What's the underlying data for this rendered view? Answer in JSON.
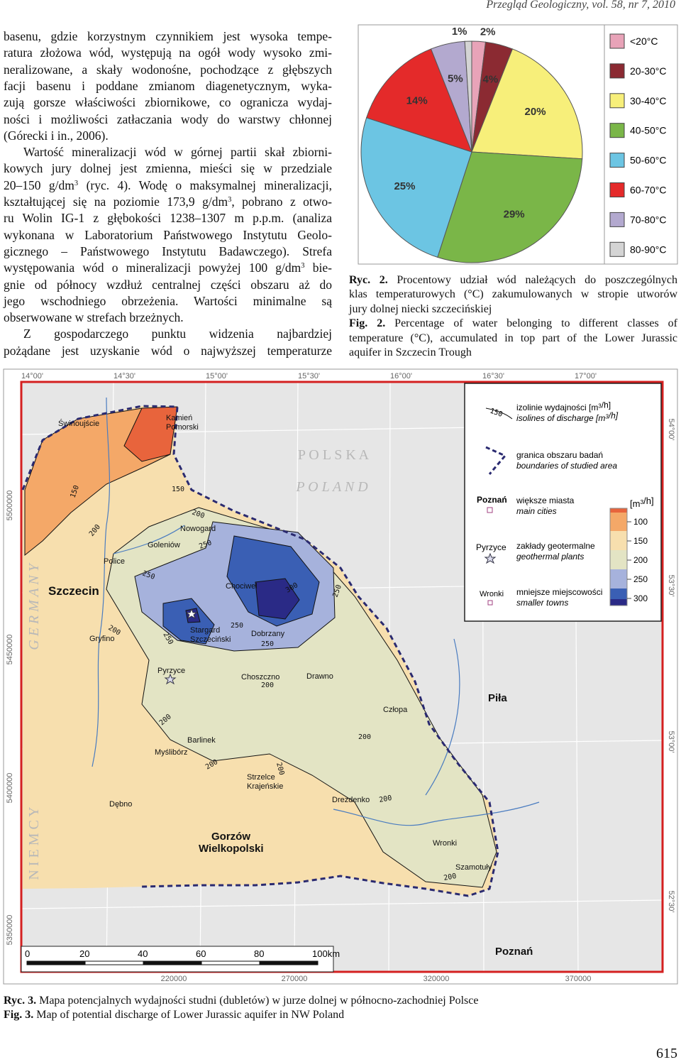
{
  "header": {
    "journal": "Przegląd Geologiczny, vol. 58, nr 7, 2010"
  },
  "body": {
    "paragraphs": [
      [
        "basenu, gdzie korzystnym czynnikiem jest wysoka tempe-",
        "ratura złożowa wód, występują na ogół wody wysoko zmi-",
        "neralizowane, a skały wodonośne, pochodzące z głębszych",
        "facji basenu i poddane zmianom diagenetycznym, wyka-",
        "zują gorsze właściwości zbiornikowe, co ogranicza wydaj-",
        "ności i możliwości zatłaczania wody do warstwy chłonnej",
        "(Górecki i in., 2006)."
      ],
      [
        "Wartość mineralizacji wód w górnej partii skał zbiorni-",
        "kowych jury dolnej jest zmienna, mieści się w przedziale",
        [
          "20–150 g/dm",
          {
            "sup": "3"
          },
          " (ryc. 4). Wodę o maksymalnej mineralizacji,"
        ],
        [
          "kształtującej się na poziomie 173,9 g/dm",
          {
            "sup": "3"
          },
          ", pobrano z otwo-"
        ],
        "ru Wolin IG-1 z głębokości 1238–1307 m p.p.m. (analiza",
        "wykonana w Laboratorium Państwowego Instytutu Geolo-",
        "gicznego – Państwowego Instytutu Badawczego). Strefa",
        [
          "występowania wód o mineralizacji powyżej 100 g/dm",
          {
            "sup": "3"
          },
          " bie-"
        ],
        "gnie od północy wzdłuż centralnej części obszaru aż do",
        "jego wschodniego obrzeżenia. Wartości minimalne są",
        "obserwowane w strefach brzeżnych."
      ],
      [
        "Z gospodarczego punktu widzenia najbardziej",
        "pożądane jest uzyskanie wód o najwyższej temperaturze"
      ]
    ]
  },
  "chart_data": {
    "type": "pie",
    "categories": [
      "<20°C",
      "20-30°C",
      "30-40°C",
      "40-50°C",
      "50-60°C",
      "60-70°C",
      "70-80°C",
      "80-90°C"
    ],
    "values": [
      2,
      4,
      20,
      29,
      25,
      14,
      5,
      1
    ],
    "value_labels": [
      "2%",
      "4%",
      "20%",
      "29%",
      "25%",
      "14%",
      "5%",
      "1%"
    ],
    "colors": [
      "#e8a3b8",
      "#8b2a32",
      "#f7ef7a",
      "#7ab648",
      "#6cc5e3",
      "#e42a2a",
      "#b3a9cf",
      "#d4d4d4"
    ],
    "legend": "right"
  },
  "figure2_caption": {
    "pl": [
      [
        {
          "b": "Ryc. 2."
        },
        " Procentowy udział wód należących do poszczególnych"
      ],
      "klas temperaturowych (°C) zakumulowanych w stropie utworów",
      "jury dolnej niecki szczecińskiej"
    ],
    "en": [
      [
        {
          "b": "Fig. 2."
        },
        " Percentage of water belonging to different classes of"
      ],
      "temperature (°C), accumulated in top part of the Lower Jurassic",
      "aquifer in Szczecin Trough"
    ]
  },
  "map": {
    "longitudes": [
      "14°00'",
      "14°30'",
      "15°00'",
      "15°30'",
      "16°00'",
      "16°30'",
      "17°00'"
    ],
    "eastings": [
      "220000",
      "270000",
      "320000",
      "370000"
    ],
    "northings": [
      "5500000",
      "5450000",
      "5400000",
      "5350000"
    ],
    "latitudes": [
      "54°00'",
      "53°30'",
      "53°00'",
      "52°30'"
    ],
    "country_labels": [
      "P O L S K A",
      "P O L A N D",
      "G E R M A N Y",
      "N I E M C Y"
    ],
    "places": [
      [
        "Świnoujście"
      ],
      [
        "Kamień",
        "Pomorski"
      ],
      [
        "Nowogard"
      ],
      [
        "Goleniów"
      ],
      [
        "Police"
      ],
      [
        "Szczecin"
      ],
      [
        "Chociwel"
      ],
      [
        "Stargard",
        "Szczeciński"
      ],
      [
        "Gryfino"
      ],
      [
        "Dobrzany"
      ],
      [
        "Pyrzyce"
      ],
      [
        "Choszczno"
      ],
      [
        "Drawno"
      ],
      [
        "Piła"
      ],
      [
        "Człopa"
      ],
      [
        "Barlinek"
      ],
      [
        "Myślibórz"
      ],
      [
        "Strzelce",
        "Krajeńskie"
      ],
      [
        "Dębno"
      ],
      [
        "Drezdenko"
      ],
      [
        "Gorzów",
        "Wielkopolski"
      ],
      [
        "Wronki"
      ],
      [
        "Szamotuły"
      ],
      [
        "Poznań"
      ]
    ],
    "isoline_labels": [
      150,
      150,
      200,
      200,
      250,
      250,
      300,
      250,
      250,
      250,
      200,
      250,
      200,
      200,
      200,
      200,
      200,
      200,
      200
    ],
    "legend": {
      "isolines": {
        "sample": "150",
        "pl": [
          "izolinie wydajności [m",
          {
            "sup": "3"
          },
          "/h]"
        ],
        "en": [
          "isolines of discharge [m",
          {
            "sup": "3"
          },
          "/h]"
        ]
      },
      "boundary": {
        "pl": "granica obszaru badań",
        "en": "boundaries of studied area"
      },
      "cities": {
        "sample": "Poznań",
        "pl": "większe miasta",
        "en": "main cities"
      },
      "plants": {
        "sample": "Pyrzyce",
        "pl": "zakłady geotermalne",
        "en": "geothermal plants"
      },
      "towns": {
        "sample": "Wronki",
        "pl": "mniejsze miejscowości",
        "en": "smaller towns"
      },
      "scale": {
        "unit": [
          "[m",
          {
            "sup": "3"
          },
          "/h]"
        ],
        "classes": [
          100,
          150,
          200,
          250,
          300
        ],
        "colors": [
          "#e8643c",
          "#f4a868",
          "#f7dfae",
          "#e3e4c4",
          "#a6b2dc",
          "#3a5fb4",
          "#2a2a86"
        ]
      }
    },
    "scale_bar": [
      "0",
      "20",
      "40",
      "60",
      "80",
      "100km"
    ]
  },
  "figure3_caption": {
    "lines": [
      [
        {
          "b": "Ryc. 3."
        },
        " Mapa potencjalnych wydajności studni (dubletów) w jurze dolnej w północno-zachodniej Polsce"
      ],
      [
        {
          "b": "Fig. 3."
        },
        " Map of potential discharge of Lower Jurassic aquifer in NW Poland"
      ]
    ]
  },
  "page_number": "615"
}
